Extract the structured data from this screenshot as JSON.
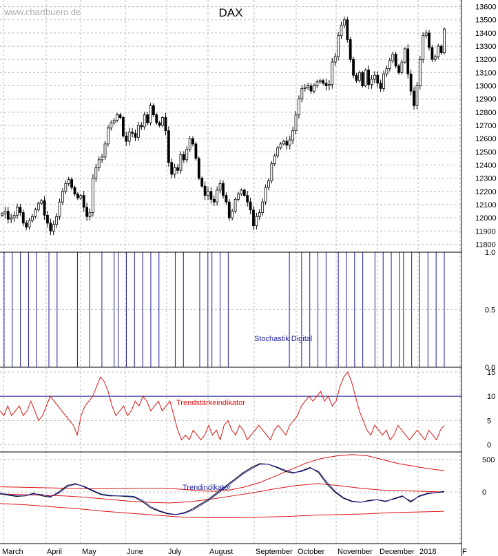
{
  "watermark": "www.chartbuero.de",
  "chart_data": [
    {
      "type": "candlestick",
      "title": "DAX",
      "y_ticks": [
        13600,
        13500,
        13400,
        13300,
        13200,
        13100,
        13000,
        12900,
        12800,
        12700,
        12600,
        12500,
        12400,
        12300,
        12200,
        12100,
        12000,
        11900,
        11800
      ],
      "ylim": [
        11740,
        13650
      ],
      "x_ticks": [
        "March",
        "April",
        "May",
        "June",
        "July",
        "August",
        "September",
        "October",
        "November",
        "December",
        "2018",
        "F"
      ],
      "grid": true,
      "series": [
        {
          "approx_closes": [
            12030,
            12050,
            11990,
            12000,
            12020,
            12080,
            12040,
            11960,
            11930,
            11980,
            12010,
            12060,
            12110,
            12130,
            12020,
            11960,
            11900,
            11950,
            12010,
            12120,
            12200,
            12260,
            12290,
            12230,
            12180,
            12150,
            12170,
            12080,
            12010,
            12040,
            12300,
            12380,
            12440,
            12460,
            12560,
            12680,
            12720,
            12740,
            12780,
            12760,
            12620,
            12580,
            12650,
            12640,
            12610,
            12700,
            12690,
            12780,
            12720,
            12850,
            12780,
            12720,
            12700,
            12760,
            12660,
            12420,
            12330,
            12380,
            12360,
            12480,
            12440,
            12520,
            12600,
            12560,
            12450,
            12300,
            12240,
            12170,
            12200,
            12140,
            12120,
            12210,
            12260,
            12170,
            12120,
            12000,
            12050,
            12140,
            12180,
            12210,
            12170,
            12120,
            12060,
            11940,
            12010,
            12040,
            12120,
            12230,
            12280,
            12410,
            12470,
            12530,
            12560,
            12580,
            12550,
            12590,
            12660,
            12780,
            12900,
            12980,
            12990,
            13000,
            12960,
            13000,
            13030,
            13040,
            13020,
            13000,
            13010,
            13180,
            13220,
            13380,
            13460,
            13500,
            13350,
            13200,
            13080,
            13040,
            13100,
            13000,
            13120,
            13010,
            13050,
            13080,
            13020,
            12980,
            13090,
            13130,
            13190,
            13240,
            13150,
            13100,
            13180,
            13280,
            13090,
            12960,
            12850,
            13000,
            13200,
            13380,
            13400,
            13290,
            13200,
            13220,
            13300,
            13250,
            13430
          ]
        }
      ]
    },
    {
      "type": "line",
      "title": "Stochastik Digital",
      "y_ticks": [
        "1.0",
        "0.5",
        "0.0"
      ],
      "ylim": [
        0,
        1
      ],
      "series": [
        {
          "name": "Stochastik Digital",
          "color": "#1c1ca0",
          "values": [
            1,
            0,
            0,
            1,
            1,
            0,
            0,
            1,
            1,
            0,
            0,
            0,
            1,
            1,
            0,
            0,
            0,
            0,
            0,
            1,
            1,
            1,
            0,
            0,
            0,
            1,
            1,
            1,
            0,
            1,
            1,
            0,
            0,
            1,
            1,
            0,
            0,
            1,
            1,
            0,
            0,
            0,
            0,
            1,
            1,
            0,
            0,
            0,
            0,
            1,
            1,
            0,
            1,
            1,
            0,
            0,
            1,
            1,
            1,
            1,
            1,
            1,
            1,
            1,
            1,
            1,
            1,
            1,
            1,
            1,
            1,
            0,
            0,
            0,
            1,
            1,
            0,
            0,
            1,
            1,
            0,
            0,
            0,
            1,
            1,
            0,
            0,
            1,
            1,
            0,
            0,
            0,
            1,
            1,
            0,
            0,
            1,
            1,
            0,
            1,
            1,
            0,
            0,
            1,
            1,
            0,
            0,
            1,
            1,
            0
          ]
        }
      ]
    },
    {
      "type": "line",
      "title": "Trendstärkeindikator",
      "y_ticks": [
        "15",
        "10",
        "5",
        "0"
      ],
      "ylim": [
        -1.5,
        16
      ],
      "reference_line": 10,
      "series": [
        {
          "name": "Trendstärkeindikator",
          "color": "#dd1111",
          "values": [
            7,
            6,
            8,
            6,
            7,
            8,
            6,
            7,
            9,
            7,
            5,
            6,
            8,
            10,
            9,
            8,
            7,
            6,
            5,
            4,
            2,
            6,
            8,
            9,
            10,
            12,
            14,
            13,
            11,
            8,
            6,
            7,
            8,
            6,
            7,
            9,
            8,
            10,
            9,
            7,
            8,
            9,
            7,
            8,
            9,
            6,
            3,
            1,
            2,
            1,
            3,
            2,
            1,
            2,
            4,
            2,
            3,
            1,
            4,
            5,
            3,
            2,
            4,
            3,
            1,
            2,
            3,
            4,
            3,
            2,
            1,
            3,
            4,
            3,
            2,
            4,
            5,
            6,
            8,
            9,
            10,
            9,
            10,
            11,
            9,
            10,
            8,
            9,
            12,
            14,
            15,
            13,
            10,
            7,
            5,
            3,
            2,
            4,
            3,
            2,
            3,
            1,
            2,
            4,
            3,
            2,
            1,
            2,
            3,
            2,
            1,
            3,
            2,
            1,
            3,
            4
          ]
        }
      ]
    },
    {
      "type": "line",
      "title": "Trendindikator",
      "y_ticks": [
        "500",
        "0"
      ],
      "ylim": [
        -800,
        620
      ],
      "series": [
        {
          "name": "upper band",
          "color": "#dd1111",
          "values": [
            80,
            75,
            70,
            65,
            60,
            55,
            50,
            50,
            55,
            60,
            60,
            55,
            40,
            20,
            10,
            30,
            80,
            150,
            250,
            350,
            450,
            520,
            560,
            580,
            560,
            500,
            440,
            400,
            360,
            330
          ]
        },
        {
          "name": "middle line",
          "color": "#dd1111",
          "values": [
            -30,
            -40,
            -50,
            -60,
            -80,
            -110,
            -140,
            -160,
            -170,
            -150,
            -110,
            -60,
            -10,
            50,
            100,
            130,
            100,
            60,
            30,
            20,
            10,
            0
          ]
        },
        {
          "name": "lower band",
          "color": "#dd1111",
          "values": [
            -180,
            -200,
            -230,
            -260,
            -300,
            -330,
            -360,
            -390,
            -400,
            -400,
            -390,
            -380,
            -360,
            -350,
            -340,
            -320,
            -310,
            -300
          ]
        },
        {
          "name": "trend",
          "color": "#000000",
          "values": [
            -30,
            -50,
            -70,
            -60,
            -20,
            -60,
            -80,
            0,
            100,
            130,
            80,
            20,
            -40,
            -60,
            -60,
            -70,
            -80,
            -150,
            -250,
            -300,
            -340,
            -350,
            -320,
            -260,
            -180,
            -100,
            0,
            100,
            200,
            300,
            380,
            440,
            430,
            380,
            320,
            290,
            330,
            380,
            300,
            120,
            -10,
            -100,
            -150,
            -160,
            -130,
            -120,
            -150,
            -100,
            -60,
            -160,
            -60,
            -20,
            -10,
            10
          ]
        },
        {
          "name": "signal",
          "color": "#1c1ca0",
          "values": [
            -20,
            -40,
            -60,
            -60,
            -30,
            -40,
            -70,
            -20,
            80,
            120,
            90,
            30,
            -30,
            -50,
            -60,
            -60,
            -70,
            -130,
            -230,
            -290,
            -330,
            -350,
            -330,
            -280,
            -200,
            -120,
            -20,
            80,
            180,
            280,
            360,
            430,
            430,
            390,
            340,
            300,
            320,
            370,
            320,
            150,
            10,
            -90,
            -140,
            -160,
            -140,
            -120,
            -140,
            -110,
            -70,
            -140,
            -70,
            -30,
            -10,
            0
          ]
        }
      ]
    }
  ]
}
